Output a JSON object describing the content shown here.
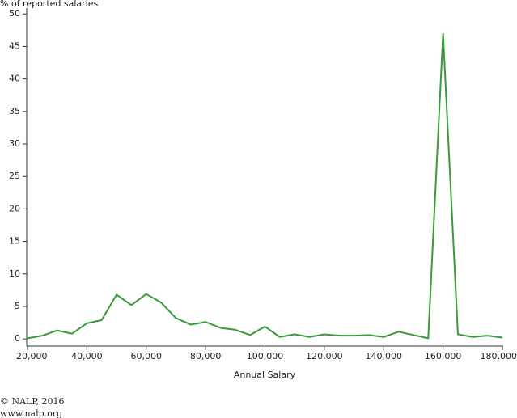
{
  "chart_data": {
    "type": "line",
    "y_axis_title": "% of reported salaries",
    "x_axis_title": "Annual Salary",
    "x": [
      20000,
      25000,
      30000,
      35000,
      40000,
      45000,
      50000,
      55000,
      60000,
      65000,
      70000,
      75000,
      80000,
      85000,
      90000,
      95000,
      100000,
      105000,
      110000,
      115000,
      120000,
      125000,
      130000,
      135000,
      140000,
      145000,
      150000,
      155000,
      160000,
      165000,
      170000,
      175000,
      180000
    ],
    "series": [
      {
        "name": "% of reported salaries",
        "color": "#3a9a3a",
        "values": [
          0.1,
          0.5,
          1.3,
          0.8,
          2.4,
          2.9,
          6.8,
          5.2,
          6.9,
          5.6,
          3.2,
          2.2,
          2.6,
          1.7,
          1.4,
          0.6,
          1.9,
          0.3,
          0.7,
          0.3,
          0.7,
          0.5,
          0.5,
          0.6,
          0.3,
          1.1,
          0.6,
          0.1,
          47.0,
          0.7,
          0.3,
          0.5,
          0.2
        ]
      }
    ],
    "xlim": [
      20000,
      180000
    ],
    "xticks": [
      {
        "value": 20000,
        "label": "20,000"
      },
      {
        "value": 40000,
        "label": "40,000"
      },
      {
        "value": 60000,
        "label": "60,000"
      },
      {
        "value": 80000,
        "label": "80,000"
      },
      {
        "value": 100000,
        "label": "100,000"
      },
      {
        "value": 120000,
        "label": "120,000"
      },
      {
        "value": 140000,
        "label": "140,000"
      },
      {
        "value": 160000,
        "label": "160,000"
      },
      {
        "value": 180000,
        "label": "180,000"
      }
    ],
    "ylim": [
      -1.1,
      50.9
    ],
    "yticks": [
      0,
      5,
      10,
      15,
      20,
      25,
      30,
      35,
      40,
      45,
      50
    ],
    "grid": false
  },
  "footer": [
    "© NALP, 2016",
    "www.nalp.org"
  ]
}
